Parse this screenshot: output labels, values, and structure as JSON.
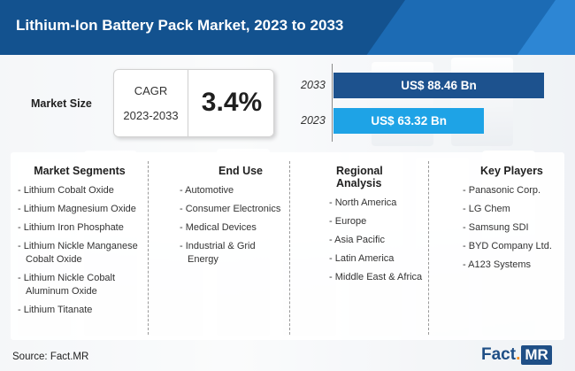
{
  "title": "Lithium-Ion Battery Pack Market, 2023 to 2033",
  "market_size_label": "Market Size",
  "cagr": {
    "label": "CAGR",
    "period": "2023-2033",
    "value": "3.4%"
  },
  "chart_data": {
    "type": "bar",
    "orientation": "horizontal",
    "categories": [
      "2033",
      "2023"
    ],
    "values": [
      88.46,
      63.32
    ],
    "value_labels": [
      "US$ 88.46 Bn",
      "US$ 63.32 Bn"
    ],
    "colors": [
      "#1d528e",
      "#1ea3e6"
    ]
  },
  "columns": [
    {
      "heading": "Market Segments",
      "items": [
        "Lithium Cobalt Oxide",
        "Lithium Magnesium Oxide",
        "Lithium Iron Phosphate",
        "Lithium Nickle Manganese Cobalt Oxide",
        "Lithium Nickle Cobalt Aluminum Oxide",
        "Lithium Titanate"
      ]
    },
    {
      "heading": "End Use",
      "items": [
        "Automotive",
        "Consumer Electronics",
        "Medical Devices",
        "Industrial & Grid Energy"
      ]
    },
    {
      "heading": "Regional Analysis",
      "items": [
        "North America",
        "Europe",
        "Asia Pacific",
        "Latin America",
        "Middle East & Africa"
      ]
    },
    {
      "heading": "Key Players",
      "items": [
        "Panasonic Corp.",
        "LG Chem",
        "Samsung SDI",
        "BYD Company Ltd.",
        "A123 Systems"
      ]
    }
  ],
  "source": "Source: Fact.MR",
  "logo": {
    "part1": "Fact",
    "dot": ".",
    "part2": "MR"
  }
}
